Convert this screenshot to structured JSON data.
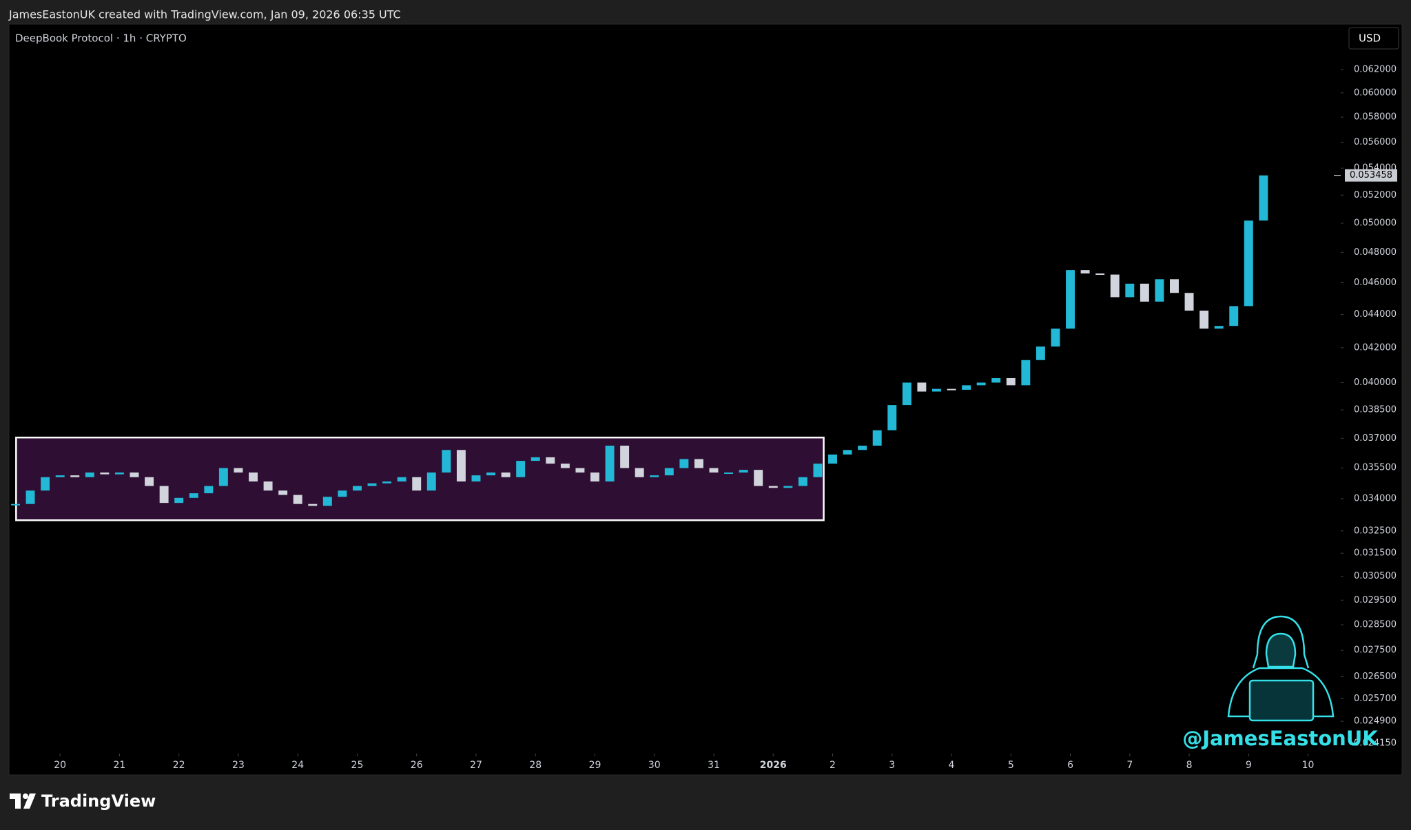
{
  "header": "JamesEastonUK created with TradingView.com, Jan 09, 2026 06:35 UTC",
  "footer_logo": "TradingView",
  "chart_data": {
    "type": "candlestick",
    "title": "DeepBook Protocol · 1h · CRYPTO",
    "currency": "USD",
    "watermark": "@JamesEastonUK",
    "log_scale": true,
    "up_color": "#22b8d6",
    "down_color": "#d1d4dc",
    "x": [
      -0.75,
      -0.5,
      -0.25,
      0,
      0.25,
      0.5,
      0.75,
      1,
      1.25,
      1.5,
      1.75,
      2,
      2.25,
      2.5,
      2.75,
      3,
      3.25,
      3.5,
      3.75,
      4,
      4.25,
      4.5,
      4.75,
      5,
      5.25,
      5.5,
      5.75,
      6,
      6.25,
      6.5,
      6.75,
      7,
      7.25,
      7.5,
      7.75,
      8,
      8.25,
      8.5,
      8.75,
      9,
      9.25,
      9.5,
      9.75,
      10,
      10.25,
      10.5,
      10.75,
      11,
      11.25,
      11.5,
      11.75,
      12,
      12.25,
      12.5,
      12.75,
      13,
      13.25,
      13.5,
      13.75,
      14,
      14.25,
      14.5,
      14.75,
      15,
      15.25,
      15.5,
      15.75,
      16,
      16.25,
      16.5,
      16.75,
      17,
      17.25,
      17.5,
      17.75,
      18,
      18.25,
      18.5,
      18.75,
      19,
      19.25,
      19.5,
      19.75,
      20,
      20.25
    ],
    "series": [
      {
        "name": "DeepBook Protocol",
        "values": [
          0.03375,
          0.03439,
          0.03504,
          0.03513,
          0.03504,
          0.03527,
          0.03518,
          0.03527,
          0.03504,
          0.03461,
          0.0338,
          0.03404,
          0.03426,
          0.03461,
          0.03549,
          0.03527,
          0.03483,
          0.03439,
          0.03418,
          0.03375,
          0.03366,
          0.03409,
          0.03439,
          0.03461,
          0.03474,
          0.03483,
          0.03504,
          0.03439,
          0.03527,
          0.0364,
          0.03483,
          0.03513,
          0.03527,
          0.03504,
          0.03585,
          0.03603,
          0.03571,
          0.03549,
          0.03527,
          0.03483,
          0.03662,
          0.03549,
          0.03504,
          0.03513,
          0.03549,
          0.03594,
          0.03549,
          0.03527,
          0.03527,
          0.0354,
          0.03461,
          0.03452,
          0.03461,
          0.03504,
          0.03571,
          0.03617,
          0.0364,
          0.03662,
          0.03742,
          0.03876,
          0.04,
          0.0395,
          0.03965,
          0.0396,
          0.03985,
          0.04,
          0.04025,
          0.03985,
          0.04128,
          0.04207,
          0.04314,
          0.04682,
          0.0466,
          0.04653,
          0.04508,
          0.04594,
          0.0448,
          0.04623,
          0.04535,
          0.04424,
          0.04314,
          0.0433,
          0.04452,
          0.05018,
          0.053458
        ]
      }
    ],
    "last_price": {
      "value": 0.053458,
      "label": "0.053458"
    },
    "box": {
      "x": [
        -0.74,
        12.85
      ],
      "y": [
        0.03299,
        0.03704
      ],
      "fill": "#2e0f33",
      "stroke": "#ffffff"
    },
    "xlim": [
      -0.86,
      21.55
    ],
    "ylim": [
      0.0238,
      0.066
    ],
    "xticks": [
      {
        "value": 0,
        "label": "20"
      },
      {
        "value": 1,
        "label": "21"
      },
      {
        "value": 2,
        "label": "22"
      },
      {
        "value": 3,
        "label": "23"
      },
      {
        "value": 4,
        "label": "24"
      },
      {
        "value": 5,
        "label": "25"
      },
      {
        "value": 6,
        "label": "26"
      },
      {
        "value": 7,
        "label": "27"
      },
      {
        "value": 8,
        "label": "28"
      },
      {
        "value": 9,
        "label": "29"
      },
      {
        "value": 10,
        "label": "30"
      },
      {
        "value": 11,
        "label": "31"
      },
      {
        "value": 12,
        "label": "2026"
      },
      {
        "value": 13,
        "label": "2"
      },
      {
        "value": 14,
        "label": "3"
      },
      {
        "value": 15,
        "label": "4"
      },
      {
        "value": 16,
        "label": "5"
      },
      {
        "value": 17,
        "label": "6"
      },
      {
        "value": 18,
        "label": "7"
      },
      {
        "value": 19,
        "label": "8"
      },
      {
        "value": 20,
        "label": "9"
      },
      {
        "value": 21,
        "label": "10"
      }
    ],
    "yticks": [
      {
        "value": 0.062,
        "label": "0.062000"
      },
      {
        "value": 0.06,
        "label": "0.060000"
      },
      {
        "value": 0.058,
        "label": "0.058000"
      },
      {
        "value": 0.056,
        "label": "0.056000"
      },
      {
        "value": 0.054,
        "label": "0.054000"
      },
      {
        "value": 0.052,
        "label": "0.052000"
      },
      {
        "value": 0.05,
        "label": "0.050000"
      },
      {
        "value": 0.048,
        "label": "0.048000"
      },
      {
        "value": 0.046,
        "label": "0.046000"
      },
      {
        "value": 0.044,
        "label": "0.044000"
      },
      {
        "value": 0.042,
        "label": "0.042000"
      },
      {
        "value": 0.04,
        "label": "0.040000"
      },
      {
        "value": 0.0385,
        "label": "0.038500"
      },
      {
        "value": 0.037,
        "label": "0.037000"
      },
      {
        "value": 0.0355,
        "label": "0.035500"
      },
      {
        "value": 0.034,
        "label": "0.034000"
      },
      {
        "value": 0.0325,
        "label": "0.032500"
      },
      {
        "value": 0.0315,
        "label": "0.031500"
      },
      {
        "value": 0.0305,
        "label": "0.030500"
      },
      {
        "value": 0.0295,
        "label": "0.029500"
      },
      {
        "value": 0.0285,
        "label": "0.028500"
      },
      {
        "value": 0.0275,
        "label": "0.027500"
      },
      {
        "value": 0.0265,
        "label": "0.026500"
      },
      {
        "value": 0.0257,
        "label": "0.025700"
      },
      {
        "value": 0.0249,
        "label": "0.024900"
      },
      {
        "value": 0.02415,
        "label": "0.024150"
      }
    ],
    "grid": false
  }
}
